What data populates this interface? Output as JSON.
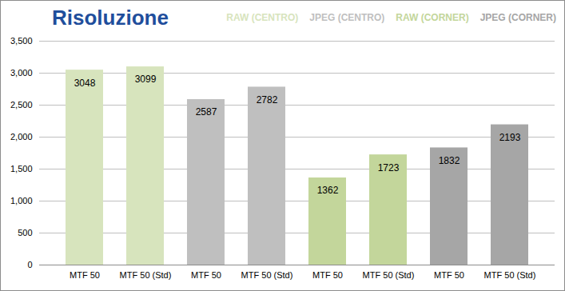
{
  "chart_data": {
    "type": "bar",
    "title": "Risoluzione",
    "categories": [
      "MTF 50",
      "MTF 50 (Std)",
      "MTF 50",
      "MTF 50 (Std)",
      "MTF 50",
      "MTF 50 (Std)",
      "MTF 50",
      "MTF 50 (Std)"
    ],
    "series": [
      {
        "name": "RAW (CENTRO)",
        "color": "#d7e4bd",
        "values": [
          3048,
          3099,
          null,
          null,
          null,
          null,
          null,
          null
        ]
      },
      {
        "name": "JPEG (CENTRO)",
        "color": "#bfbfbf",
        "values": [
          null,
          null,
          2587,
          2782,
          null,
          null,
          null,
          null
        ]
      },
      {
        "name": "RAW (CORNER)",
        "color": "#c3d69b",
        "values": [
          null,
          null,
          null,
          null,
          1362,
          1723,
          null,
          null
        ]
      },
      {
        "name": "JPEG (CORNER)",
        "color": "#a6a6a6",
        "values": [
          null,
          null,
          null,
          null,
          null,
          null,
          1832,
          2193
        ]
      }
    ],
    "ylim": [
      0,
      3500
    ],
    "yticks": [
      0,
      500,
      1000,
      1500,
      2000,
      2500,
      3000,
      3500
    ],
    "grid": true,
    "legend": "top-right",
    "data_labels": true
  }
}
